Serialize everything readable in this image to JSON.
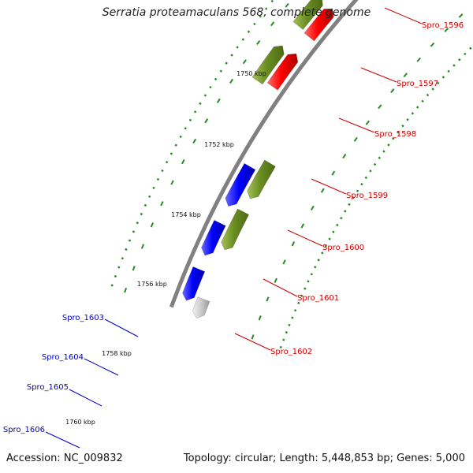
{
  "title": "Serratia proteamaculans 568, complete genome",
  "accession": "Accession: NC_009832",
  "topology": "Topology: circular; Length: 5,448,853 bp; Genes: 5,000",
  "kbp_labels": [
    "1750 kbp",
    "1752 kbp",
    "1754 kbp",
    "1756 kbp",
    "1758 kbp",
    "1760 kbp"
  ],
  "genes_right": [
    "Spro_1596",
    "Spro_1597",
    "Spro_1598",
    "Spro_1599",
    "Spro_1600",
    "Spro_1601",
    "Spro_1602"
  ],
  "genes_left": [
    "Spro_1603",
    "Spro_1604",
    "Spro_1605",
    "Spro_1606"
  ],
  "colors": {
    "forward_gene": "#ff0000",
    "forward_label": "#cc0000",
    "reverse_gene": "#0000ff",
    "reverse_label": "#0000cc",
    "olive": "#6b8e23",
    "lime": "#aaff22",
    "cyan": "#00cccc",
    "grey_gene": "#c8c8c8",
    "backbone": "#808080",
    "ticks": "#228b22"
  }
}
